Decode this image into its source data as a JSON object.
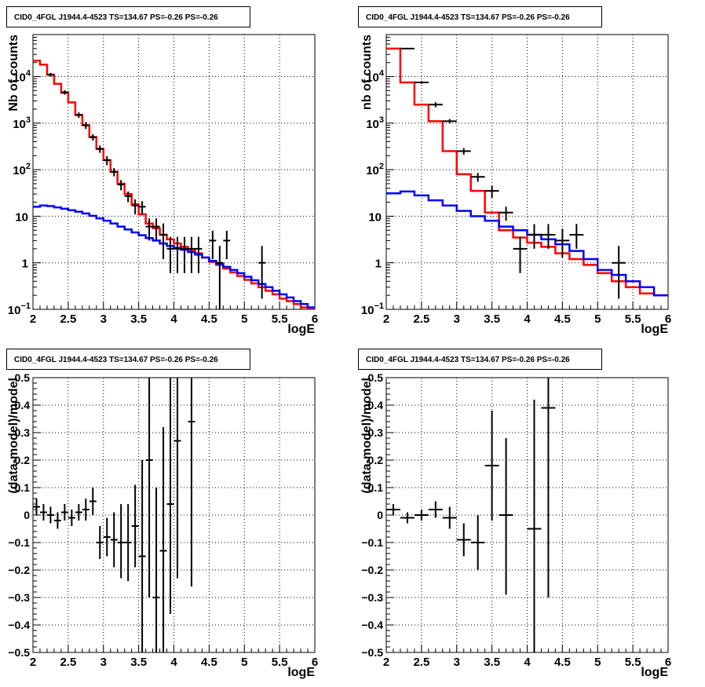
{
  "colors": {
    "background": "#ffffff",
    "axis": "#000000",
    "grid": "#000000",
    "data": "#000000",
    "total_model": "#ff0000",
    "source_model": "#0000ff"
  },
  "chart_data": [
    {
      "type": "line",
      "title": "CID0_4FGL J1944.4-4523 TS=134.67 PS=-0.26 PS=-0.26",
      "xlabel": "logE",
      "ylabel": "Nb of counts",
      "xlim": [
        2,
        6
      ],
      "ylim": [
        0.1,
        80000
      ],
      "yscale": "log",
      "grid": true,
      "x_ticks": [
        {
          "value": 2,
          "label": "2"
        },
        {
          "value": 2.5,
          "label": "2.5"
        },
        {
          "value": 3,
          "label": "3"
        },
        {
          "value": 3.5,
          "label": "3.5"
        },
        {
          "value": 4,
          "label": "4"
        },
        {
          "value": 4.5,
          "label": "4.5"
        },
        {
          "value": 5,
          "label": "5"
        },
        {
          "value": 5.5,
          "label": "5.5"
        },
        {
          "value": 6,
          "label": "6"
        }
      ],
      "y_ticks": [
        {
          "value": 0.1,
          "label": "10",
          "exp": "−1"
        },
        {
          "value": 1,
          "label": "1",
          "exp": ""
        },
        {
          "value": 10,
          "label": "10",
          "exp": ""
        },
        {
          "value": 100,
          "label": "10",
          "exp": "2"
        },
        {
          "value": 1000,
          "label": "10",
          "exp": "3"
        },
        {
          "value": 10000,
          "label": "10",
          "exp": "4"
        }
      ],
      "bin_width": 0.1,
      "series": [
        {
          "kind": "step",
          "style": "total_model",
          "x_edges": [
            2,
            2.1,
            2.2,
            2.3,
            2.4,
            2.5,
            2.6,
            2.7,
            2.8,
            2.9,
            3.0,
            3.1,
            3.2,
            3.3,
            3.4,
            3.5,
            3.6,
            3.7,
            3.8,
            3.9,
            4.0,
            4.1,
            4.2,
            4.3,
            4.4,
            4.5,
            4.6,
            4.7,
            4.8,
            4.9,
            5.0,
            5.1,
            5.2,
            5.3,
            5.4,
            5.5,
            5.6,
            5.7,
            5.8,
            5.9,
            6.0
          ],
          "values": [
            22000,
            18000,
            11000,
            7000,
            4500,
            2800,
            1500,
            900,
            500,
            280,
            160,
            90,
            50,
            30,
            18,
            11,
            7,
            5.5,
            4,
            3.2,
            2.6,
            2.2,
            1.9,
            1.6,
            1.3,
            1.05,
            0.9,
            0.75,
            0.62,
            0.52,
            0.43,
            0.36,
            0.3,
            0.25,
            0.21,
            0.17,
            0.15,
            0.13,
            0.11,
            0.1
          ]
        },
        {
          "kind": "step",
          "style": "source_model",
          "x_edges": [
            2,
            2.1,
            2.2,
            2.3,
            2.4,
            2.5,
            2.6,
            2.7,
            2.8,
            2.9,
            3.0,
            3.1,
            3.2,
            3.3,
            3.4,
            3.5,
            3.6,
            3.7,
            3.8,
            3.9,
            4.0,
            4.1,
            4.2,
            4.3,
            4.4,
            4.5,
            4.6,
            4.7,
            4.8,
            4.9,
            5.0,
            5.1,
            5.2,
            5.3,
            5.4,
            5.5,
            5.6,
            5.7,
            5.8,
            5.9,
            6.0
          ],
          "values": [
            16,
            17,
            16.5,
            15.5,
            14.5,
            13.5,
            12.5,
            11.5,
            10.2,
            9,
            8,
            7,
            6,
            5.2,
            4.5,
            3.9,
            3.4,
            3,
            2.6,
            2.3,
            2.1,
            1.9,
            1.7,
            1.5,
            1.3,
            1.1,
            0.95,
            0.82,
            0.7,
            0.6,
            0.5,
            0.42,
            0.35,
            0.3,
            0.25,
            0.21,
            0.18,
            0.15,
            0.13,
            0.11
          ]
        },
        {
          "kind": "errorbar",
          "style": "data",
          "points": [
            [
              2.25,
              11000,
              1000,
              1000
            ],
            [
              2.45,
              4600,
              500,
              500
            ],
            [
              2.65,
              1500,
              200,
              200
            ],
            [
              2.75,
              900,
              150,
              150
            ],
            [
              2.85,
              500,
              80,
              80
            ],
            [
              2.95,
              280,
              50,
              50
            ],
            [
              3.05,
              160,
              35,
              35
            ],
            [
              3.15,
              90,
              18,
              18
            ],
            [
              3.25,
              48,
              12,
              12
            ],
            [
              3.35,
              27,
              7,
              7
            ],
            [
              3.45,
              17,
              6,
              6
            ],
            [
              3.55,
              16,
              5,
              5
            ],
            [
              3.65,
              6,
              3,
              3
            ],
            [
              3.75,
              6,
              3,
              3
            ],
            [
              3.85,
              4,
              2.8,
              3
            ],
            [
              3.95,
              2,
              1.4,
              1.6
            ],
            [
              4.05,
              2,
              1.4,
              1.6
            ],
            [
              4.15,
              2,
              1.4,
              1.6
            ],
            [
              4.25,
              2,
              1.4,
              1.6
            ],
            [
              4.35,
              2,
              1.4,
              1.6
            ],
            [
              4.55,
              3,
              1.8,
              1.9
            ],
            [
              4.65,
              1,
              0.9,
              1.3
            ],
            [
              4.75,
              3,
              1.8,
              1.9
            ],
            [
              5.25,
              1,
              0.83,
              1.3
            ]
          ]
        }
      ]
    },
    {
      "type": "line",
      "title": "CID0_4FGL J1944.4-4523 TS=134.67 PS=-0.26 PS=-0.26",
      "xlabel": "logE",
      "ylabel": "nb of counts",
      "xlim": [
        2,
        6
      ],
      "ylim": [
        0.1,
        80000
      ],
      "yscale": "log",
      "grid": true,
      "x_ticks": [
        {
          "value": 2,
          "label": "2"
        },
        {
          "value": 2.5,
          "label": "2.5"
        },
        {
          "value": 3,
          "label": "3"
        },
        {
          "value": 3.5,
          "label": "3.5"
        },
        {
          "value": 4,
          "label": "4"
        },
        {
          "value": 4.5,
          "label": "4.5"
        },
        {
          "value": 5,
          "label": "5"
        },
        {
          "value": 5.5,
          "label": "5.5"
        },
        {
          "value": 6,
          "label": "6"
        }
      ],
      "y_ticks": [
        {
          "value": 0.1,
          "label": "10",
          "exp": "−1"
        },
        {
          "value": 1,
          "label": "1",
          "exp": ""
        },
        {
          "value": 10,
          "label": "10",
          "exp": ""
        },
        {
          "value": 100,
          "label": "10",
          "exp": "2"
        },
        {
          "value": 1000,
          "label": "10",
          "exp": "3"
        },
        {
          "value": 10000,
          "label": "10",
          "exp": "4"
        }
      ],
      "bin_width": 0.2,
      "series": [
        {
          "kind": "step",
          "style": "total_model",
          "x_edges": [
            2,
            2.2,
            2.4,
            2.6,
            2.8,
            3.0,
            3.2,
            3.4,
            3.6,
            3.8,
            4.0,
            4.2,
            4.4,
            4.6,
            4.8,
            5.0,
            5.2,
            5.4,
            5.6,
            5.8,
            6.0
          ],
          "values": [
            40000,
            7500,
            2500,
            1100,
            250,
            80,
            35,
            12,
            5,
            3.5,
            2.7,
            2.2,
            1.6,
            1.2,
            0.9,
            0.6,
            0.4,
            0.3,
            0.22,
            0.2
          ]
        },
        {
          "kind": "step",
          "style": "source_model",
          "x_edges": [
            2,
            2.2,
            2.4,
            2.6,
            2.8,
            3.0,
            3.2,
            3.4,
            3.6,
            3.8,
            4.0,
            4.2,
            4.4,
            4.6,
            4.8,
            5.0,
            5.2,
            5.4,
            5.6,
            5.8,
            6.0
          ],
          "values": [
            31,
            34,
            28,
            22,
            17,
            13,
            10,
            8,
            6,
            5,
            4,
            3.2,
            2.5,
            1.8,
            1.2,
            0.7,
            0.55,
            0.4,
            0.3,
            0.2
          ]
        },
        {
          "kind": "errorbar",
          "style": "data",
          "points": [
            [
              2.3,
              40000,
              1500,
              1500
            ],
            [
              2.5,
              7500,
              500,
              500
            ],
            [
              2.7,
              2500,
              300,
              300
            ],
            [
              2.9,
              1100,
              120,
              120
            ],
            [
              3.1,
              250,
              40,
              40
            ],
            [
              3.3,
              70,
              15,
              15
            ],
            [
              3.5,
              35,
              10,
              10
            ],
            [
              3.7,
              12,
              4,
              4
            ],
            [
              3.9,
              2,
              1.4,
              1.6
            ],
            [
              4.1,
              4,
              2,
              2.8
            ],
            [
              4.3,
              4,
              2,
              2.8
            ],
            [
              4.5,
              3,
              1.7,
              2.4
            ],
            [
              4.7,
              4,
              2,
              2.8
            ],
            [
              5.3,
              1,
              0.83,
              1.3
            ]
          ]
        }
      ]
    },
    {
      "type": "scatter",
      "title": "CID0_4FGL J1944.4-4523 TS=134.67 PS=-0.26 PS=-0.26",
      "xlabel": "logE",
      "ylabel": "(data-model)/model",
      "xlim": [
        2,
        6
      ],
      "ylim": [
        -0.5,
        0.5
      ],
      "yscale": "linear",
      "grid": true,
      "x_ticks": [
        {
          "value": 2,
          "label": "2"
        },
        {
          "value": 2.5,
          "label": "2.5"
        },
        {
          "value": 3,
          "label": "3"
        },
        {
          "value": 3.5,
          "label": "3.5"
        },
        {
          "value": 4,
          "label": "4"
        },
        {
          "value": 4.5,
          "label": "4.5"
        },
        {
          "value": 5,
          "label": "5"
        },
        {
          "value": 5.5,
          "label": "5.5"
        },
        {
          "value": 6,
          "label": "6"
        }
      ],
      "y_ticks": [
        {
          "value": -0.5,
          "label": "−0.5"
        },
        {
          "value": -0.4,
          "label": "−0.4"
        },
        {
          "value": -0.3,
          "label": "−0.3"
        },
        {
          "value": -0.2,
          "label": "−0.2"
        },
        {
          "value": -0.1,
          "label": "−0.1"
        },
        {
          "value": 0,
          "label": "0"
        },
        {
          "value": 0.1,
          "label": "0.1"
        },
        {
          "value": 0.2,
          "label": "0.2"
        },
        {
          "value": 0.3,
          "label": "0.3"
        },
        {
          "value": 0.4,
          "label": "0.4"
        },
        {
          "value": 0.5,
          "label": "0.5"
        }
      ],
      "bin_width": 0.1,
      "series": [
        {
          "kind": "errorbar",
          "style": "data",
          "points": [
            [
              2.05,
              0.03,
              0.03,
              0.03
            ],
            [
              2.15,
              0.01,
              0.03,
              0.03
            ],
            [
              2.25,
              0,
              0.03,
              0.03
            ],
            [
              2.35,
              -0.02,
              0.03,
              0.03
            ],
            [
              2.45,
              0.01,
              0.03,
              0.03
            ],
            [
              2.55,
              -0.01,
              0.03,
              0.03
            ],
            [
              2.65,
              0.01,
              0.03,
              0.03
            ],
            [
              2.75,
              0.02,
              0.04,
              0.04
            ],
            [
              2.85,
              0.05,
              0.05,
              0.05
            ],
            [
              2.95,
              -0.1,
              0.06,
              0.06
            ],
            [
              3.05,
              -0.08,
              0.07,
              0.07
            ],
            [
              3.15,
              -0.09,
              0.1,
              0.1
            ],
            [
              3.25,
              -0.1,
              0.13,
              0.14
            ],
            [
              3.35,
              -0.1,
              0.14,
              0.14
            ],
            [
              3.45,
              -0.04,
              0.15,
              0.15
            ],
            [
              3.55,
              -0.15,
              0.35,
              0.35
            ],
            [
              3.65,
              0.2,
              0.5,
              0.3
            ],
            [
              3.75,
              -0.3,
              0.2,
              0.4
            ],
            [
              3.85,
              -0.13,
              0.4,
              0.45
            ],
            [
              3.95,
              0.04,
              0.4,
              0.5
            ],
            [
              4.05,
              0.27,
              0.5,
              0.3
            ],
            [
              4.25,
              0.34,
              0.6,
              0.2
            ]
          ]
        }
      ]
    },
    {
      "type": "scatter",
      "title": "CID0_4FGL J1944.4-4523 TS=134.67 PS=-0.26 PS=-0.26",
      "xlabel": "logE",
      "ylabel": "(data-model)/model",
      "xlim": [
        2,
        6
      ],
      "ylim": [
        -0.5,
        0.5
      ],
      "yscale": "linear",
      "grid": true,
      "x_ticks": [
        {
          "value": 2,
          "label": "2"
        },
        {
          "value": 2.5,
          "label": "2.5"
        },
        {
          "value": 3,
          "label": "3"
        },
        {
          "value": 3.5,
          "label": "3.5"
        },
        {
          "value": 4,
          "label": "4"
        },
        {
          "value": 4.5,
          "label": "4.5"
        },
        {
          "value": 5,
          "label": "5"
        },
        {
          "value": 5.5,
          "label": "5.5"
        },
        {
          "value": 6,
          "label": "6"
        }
      ],
      "y_ticks": [
        {
          "value": -0.5,
          "label": "−0.5"
        },
        {
          "value": -0.4,
          "label": "−0.4"
        },
        {
          "value": -0.3,
          "label": "−0.3"
        },
        {
          "value": -0.2,
          "label": "−0.2"
        },
        {
          "value": -0.1,
          "label": "−0.1"
        },
        {
          "value": 0,
          "label": "0"
        },
        {
          "value": 0.1,
          "label": "0.1"
        },
        {
          "value": 0.2,
          "label": "0.2"
        },
        {
          "value": 0.3,
          "label": "0.3"
        },
        {
          "value": 0.4,
          "label": "0.4"
        },
        {
          "value": 0.5,
          "label": "0.5"
        }
      ],
      "bin_width": 0.2,
      "series": [
        {
          "kind": "errorbar",
          "style": "data",
          "points": [
            [
              2.1,
              0.02,
              0.02,
              0.02
            ],
            [
              2.3,
              -0.01,
              0.02,
              0.02
            ],
            [
              2.5,
              0,
              0.02,
              0.02
            ],
            [
              2.7,
              0.02,
              0.03,
              0.03
            ],
            [
              2.9,
              -0.01,
              0.04,
              0.04
            ],
            [
              3.1,
              -0.09,
              0.06,
              0.06
            ],
            [
              3.3,
              -0.1,
              0.1,
              0.1
            ],
            [
              3.5,
              0.18,
              0.2,
              0.2
            ],
            [
              3.7,
              0,
              0.29,
              0.28
            ],
            [
              4.1,
              -0.05,
              0.5,
              0.47
            ],
            [
              4.3,
              0.39,
              0.69,
              0.11
            ]
          ]
        }
      ]
    }
  ]
}
